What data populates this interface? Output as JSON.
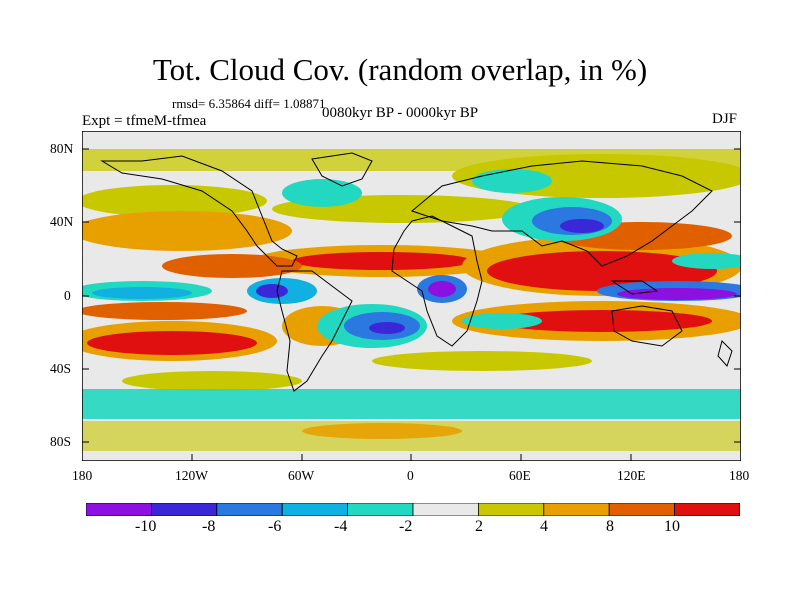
{
  "title": "Tot. Cloud Cov. (random overlap, in %)",
  "stats": "rmsd= 6.35864 diff= 1.08871",
  "experiment": "Expt = tfmeM-tfmea",
  "period": "0080kyr BP - 0000kyr BP",
  "season": "DJF",
  "map": {
    "projection": "cylindrical-equidistant",
    "lat_range": [
      -90,
      90
    ],
    "lon_range": [
      -180,
      180
    ],
    "lat_ticks": [
      "80N",
      "40N",
      "0",
      "40S",
      "80S"
    ],
    "lon_ticks": [
      "180",
      "120W",
      "60W",
      "0",
      "60E",
      "120E",
      "180"
    ]
  },
  "colorbar": {
    "labels": [
      "-10",
      "-8",
      "-6",
      "-4",
      "-2",
      "2",
      "4",
      "8",
      "10"
    ],
    "colors": [
      "#8c10e0",
      "#3a28d8",
      "#2a78e0",
      "#10b0e0",
      "#22d8c0",
      "#e9e9e9",
      "#c8c800",
      "#e8a000",
      "#e06000",
      "#e01010"
    ]
  }
}
